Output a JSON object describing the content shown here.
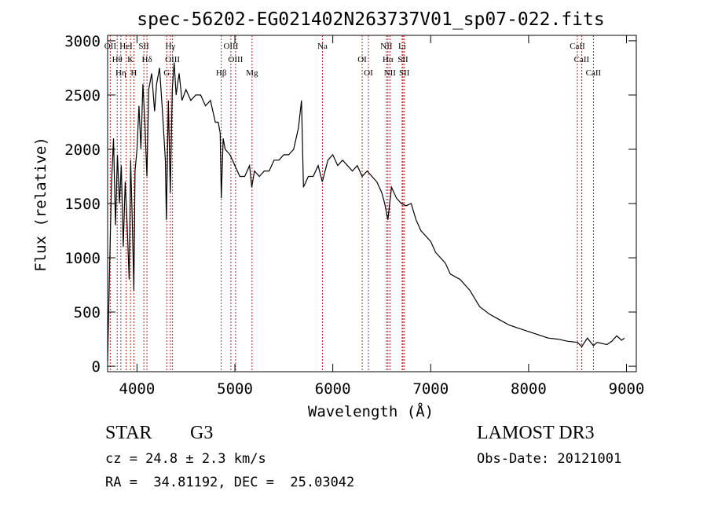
{
  "chart_data": {
    "type": "line",
    "title": "spec-56202-EG021402N263737V01_sp07-022.fits",
    "xlabel": "Wavelength (Å)",
    "ylabel": "Flux (relative)",
    "xlim": [
      3700,
      9100
    ],
    "ylim": [
      -50,
      3050
    ],
    "xticks": [
      4000,
      5000,
      6000,
      7000,
      8000,
      9000
    ],
    "yticks": [
      0,
      500,
      1000,
      1500,
      2000,
      2500,
      3000
    ],
    "series": [
      {
        "name": "flux",
        "x": [
          3700,
          3720,
          3740,
          3760,
          3780,
          3800,
          3820,
          3840,
          3860,
          3880,
          3900,
          3920,
          3935,
          3950,
          3968,
          3980,
          4000,
          4020,
          4040,
          4060,
          4080,
          4101,
          4120,
          4150,
          4180,
          4200,
          4230,
          4260,
          4290,
          4300,
          4320,
          4340,
          4360,
          4380,
          4400,
          4430,
          4460,
          4500,
          4550,
          4600,
          4650,
          4700,
          4750,
          4800,
          4830,
          4850,
          4861,
          4880,
          4900,
          4950,
          5000,
          5050,
          5100,
          5150,
          5172,
          5200,
          5250,
          5300,
          5350,
          5400,
          5450,
          5500,
          5550,
          5600,
          5650,
          5680,
          5700,
          5750,
          5800,
          5850,
          5893,
          5950,
          6000,
          6050,
          6100,
          6150,
          6200,
          6250,
          6300,
          6350,
          6400,
          6450,
          6500,
          6530,
          6563,
          6600,
          6650,
          6700,
          6750,
          6800,
          6850,
          6900,
          6950,
          7000,
          7050,
          7100,
          7150,
          7200,
          7300,
          7400,
          7500,
          7600,
          7700,
          7800,
          7900,
          8000,
          8100,
          8200,
          8300,
          8400,
          8500,
          8542,
          8600,
          8662,
          8700,
          8800,
          8850,
          8900,
          8950,
          8980
        ],
        "values": [
          50,
          900,
          1700,
          2100,
          1300,
          1950,
          1500,
          1850,
          1100,
          1700,
          1300,
          800,
          1900,
          1400,
          700,
          1800,
          2000,
          2400,
          2000,
          2600,
          2250,
          1750,
          2550,
          2700,
          2350,
          2600,
          2750,
          2350,
          1900,
          1350,
          2450,
          1600,
          2550,
          2800,
          2500,
          2700,
          2450,
          2550,
          2450,
          2500,
          2500,
          2400,
          2450,
          2250,
          2250,
          2150,
          1550,
          2100,
          2000,
          1950,
          1850,
          1750,
          1750,
          1850,
          1650,
          1800,
          1750,
          1800,
          1800,
          1900,
          1900,
          1950,
          1950,
          2000,
          2200,
          2450,
          1650,
          1750,
          1750,
          1850,
          1700,
          1900,
          1950,
          1850,
          1900,
          1850,
          1800,
          1850,
          1750,
          1800,
          1750,
          1700,
          1600,
          1500,
          1350,
          1650,
          1550,
          1500,
          1480,
          1500,
          1350,
          1250,
          1200,
          1150,
          1050,
          1000,
          950,
          850,
          800,
          700,
          550,
          480,
          430,
          380,
          350,
          320,
          290,
          260,
          250,
          230,
          220,
          180,
          260,
          190,
          220,
          200,
          230,
          280,
          240,
          260
        ]
      }
    ],
    "lines": [
      {
        "name": "OII",
        "x": 3727
      },
      {
        "name": "Hθ",
        "x": 3798
      },
      {
        "name": "Hη",
        "x": 3835
      },
      {
        "name": "HeI",
        "x": 3889
      },
      {
        "name": "K",
        "x": 3934
      },
      {
        "name": "H",
        "x": 3968
      },
      {
        "name": "SII",
        "x": 4070
      },
      {
        "name": "Hδ",
        "x": 4102
      },
      {
        "name": "G",
        "x": 4304
      },
      {
        "name": "Hγ",
        "x": 4341
      },
      {
        "name": "OIII",
        "x": 4363
      },
      {
        "name": "Hβ",
        "x": 4861
      },
      {
        "name": "OIII",
        "x": 4959
      },
      {
        "name": "OIII",
        "x": 5007
      },
      {
        "name": "Mg",
        "x": 5175
      },
      {
        "name": "Na",
        "x": 5894
      },
      {
        "name": "OI",
        "x": 6300
      },
      {
        "name": "OI",
        "x": 6364
      },
      {
        "name": "NII",
        "x": 6548
      },
      {
        "name": "Hα",
        "x": 6563
      },
      {
        "name": "NII",
        "x": 6583
      },
      {
        "name": "Li",
        "x": 6708
      },
      {
        "name": "SII",
        "x": 6717
      },
      {
        "name": "SII",
        "x": 6731
      },
      {
        "name": "CaII",
        "x": 8498
      },
      {
        "name": "CaII",
        "x": 8542
      },
      {
        "name": "CaII",
        "x": 8662
      }
    ]
  },
  "info": {
    "class_label": "STAR",
    "subclass": "G3",
    "survey": "LAMOST DR3",
    "redshift": "cz = 24.8 ± 2.3 km/s",
    "obs_date": "Obs-Date: 20121001",
    "coords": "RA =  34.81192, DEC =  25.03042"
  },
  "colors": {
    "line": "#b22222",
    "spectrum": "#000000"
  }
}
